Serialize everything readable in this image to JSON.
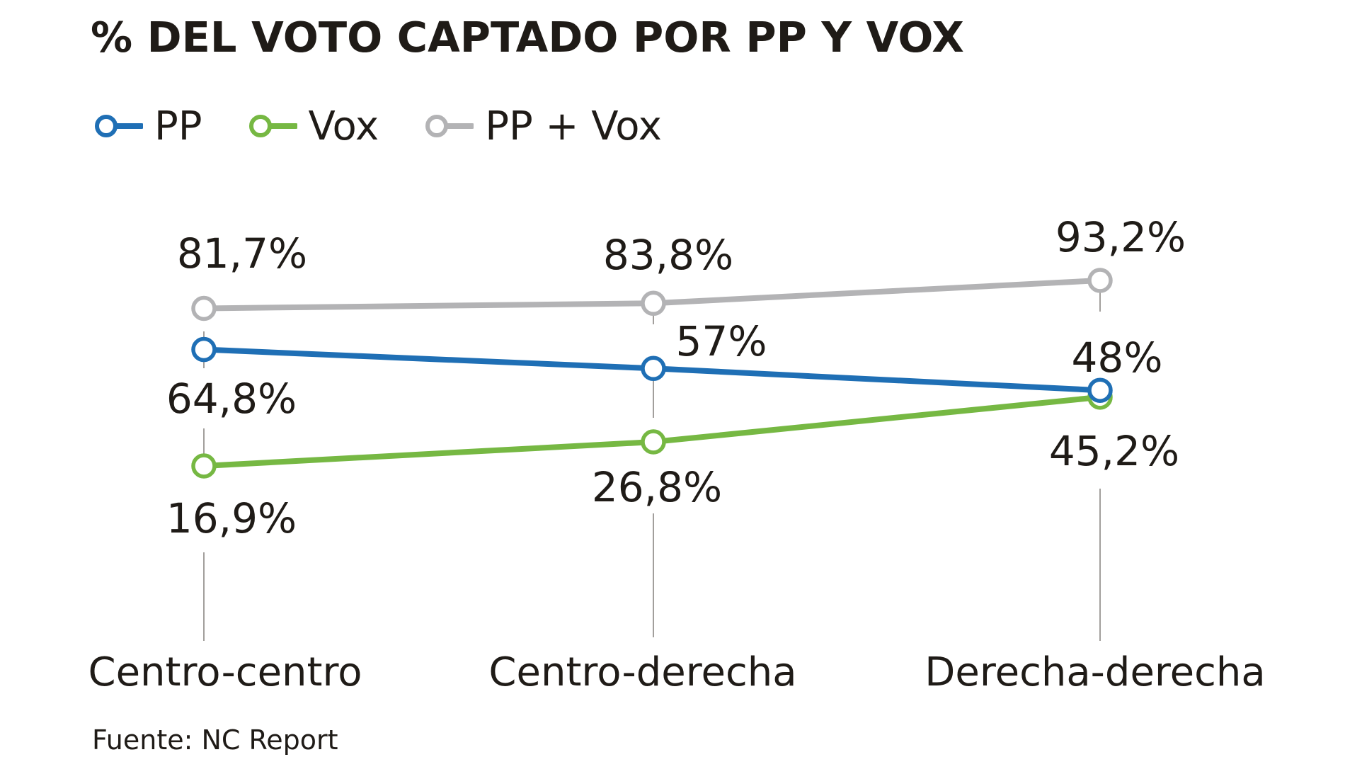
{
  "title": "% DEL VOTO CAPTADO POR PP Y VOX",
  "source": "Fuente: NC Report",
  "legend": [
    {
      "label": "PP",
      "color": "#1f6fb5"
    },
    {
      "label": "Vox",
      "color": "#76b843"
    },
    {
      "label": "PP + Vox",
      "color": "#b3b3b5"
    }
  ],
  "chart_data": {
    "type": "line",
    "categories": [
      "Centro-centro",
      "Centro-derecha",
      "Derecha-derecha"
    ],
    "series": [
      {
        "name": "PP + Vox",
        "color": "#b3b3b5",
        "values": [
          81.7,
          83.8,
          93.2
        ],
        "labels": [
          "81,7%",
          "83,8%",
          "93,2%"
        ]
      },
      {
        "name": "PP",
        "color": "#1f6fb5",
        "values": [
          64.8,
          57,
          48
        ],
        "labels": [
          "64,8%",
          "57%",
          "48%"
        ]
      },
      {
        "name": "Vox",
        "color": "#76b843",
        "values": [
          16.9,
          26.8,
          45.2
        ],
        "labels": [
          "16,9%",
          "26,8%",
          "45,2%"
        ]
      }
    ],
    "xlabel": "",
    "ylabel": "",
    "ylim": [
      0,
      100
    ],
    "grid": false,
    "legend_position": "top-left"
  }
}
